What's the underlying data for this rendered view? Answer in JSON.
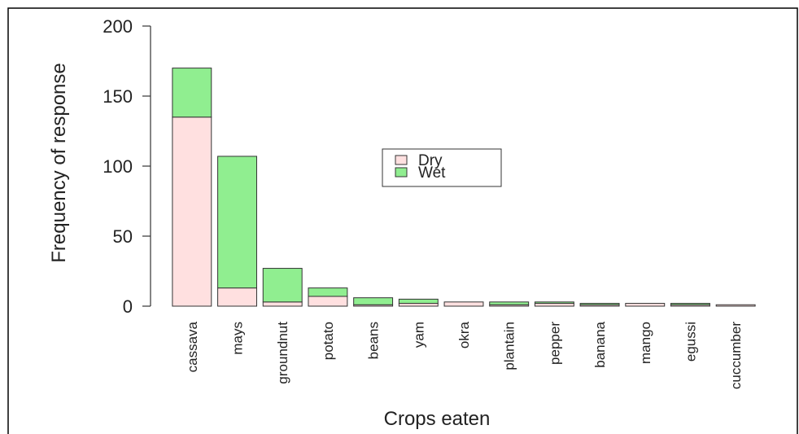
{
  "chart_data": {
    "type": "bar",
    "stacked": true,
    "x_label": "Crops eaten",
    "y_label": "Frequency of response",
    "categories": [
      "cassava",
      "mays",
      "groundnut",
      "potato",
      "beans",
      "yam",
      "okra",
      "plantain",
      "pepper",
      "banana",
      "mango",
      "egussi",
      "cuccumber"
    ],
    "series": [
      {
        "name": "Dry",
        "color": "#ffe0e0",
        "values": [
          135,
          13,
          3,
          7,
          1,
          2,
          3,
          1,
          2,
          1,
          2,
          1,
          1
        ]
      },
      {
        "name": "Wet",
        "color": "#90ee90",
        "values": [
          35,
          94,
          24,
          6,
          5,
          3,
          0,
          2,
          1,
          1,
          0,
          1,
          0
        ]
      }
    ],
    "ylim": [
      0,
      200
    ],
    "yticks": [
      0,
      50,
      100,
      150,
      200
    ],
    "legend": "center"
  }
}
